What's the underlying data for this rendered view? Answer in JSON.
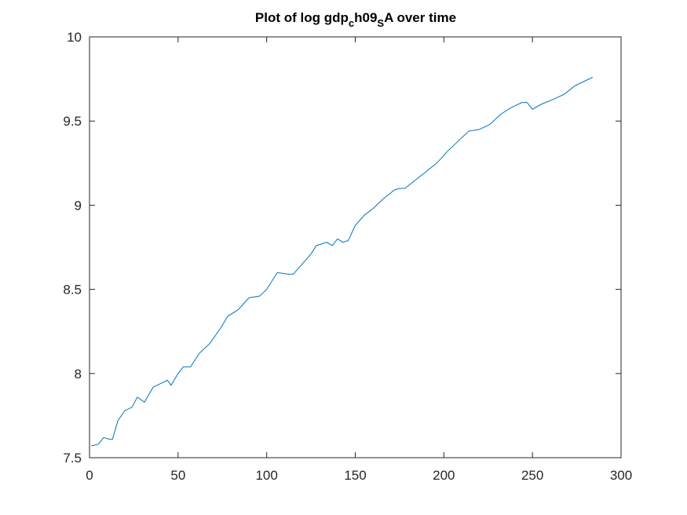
{
  "chart_data": {
    "type": "line",
    "title": [
      {
        "text": "Plot of log gdp",
        "subscript": false
      },
      {
        "text": "c",
        "subscript": true
      },
      {
        "text": "h09",
        "subscript": false
      },
      {
        "text": "S",
        "subscript": true
      },
      {
        "text": "A over time",
        "subscript": false
      }
    ],
    "x": [
      1,
      5,
      8,
      11,
      13,
      16,
      20,
      24,
      27,
      31,
      36,
      40,
      44,
      46,
      50,
      53,
      57,
      62,
      68,
      74,
      78,
      84,
      90,
      96,
      100,
      106,
      112,
      115,
      120,
      125,
      128,
      134,
      137,
      140,
      143,
      146,
      150,
      155,
      160,
      166,
      172,
      175,
      178,
      184,
      190,
      196,
      202,
      208,
      214,
      220,
      226,
      232,
      238,
      244,
      247,
      250,
      255,
      262,
      268,
      274,
      280,
      284
    ],
    "series": [
      {
        "color": "#0072bd",
        "values": [
          7.57,
          7.58,
          7.62,
          7.61,
          7.61,
          7.72,
          7.78,
          7.8,
          7.86,
          7.83,
          7.92,
          7.94,
          7.96,
          7.93,
          8.0,
          8.04,
          8.04,
          8.12,
          8.18,
          8.27,
          8.34,
          8.38,
          8.45,
          8.46,
          8.5,
          8.6,
          8.59,
          8.59,
          8.65,
          8.71,
          8.76,
          8.78,
          8.76,
          8.8,
          8.78,
          8.79,
          8.88,
          8.94,
          8.98,
          9.04,
          9.09,
          9.1,
          9.1,
          9.15,
          9.2,
          9.25,
          9.32,
          9.38,
          9.44,
          9.45,
          9.48,
          9.54,
          9.58,
          9.61,
          9.61,
          9.57,
          9.6,
          9.63,
          9.66,
          9.71,
          9.74,
          9.76
        ]
      }
    ],
    "xlim": [
      0,
      300
    ],
    "xticks": [
      0,
      50,
      100,
      150,
      200,
      250,
      300
    ],
    "ylim": [
      7.5,
      10
    ],
    "yticks": [
      7.5,
      8,
      8.5,
      9,
      9.5,
      10
    ]
  }
}
